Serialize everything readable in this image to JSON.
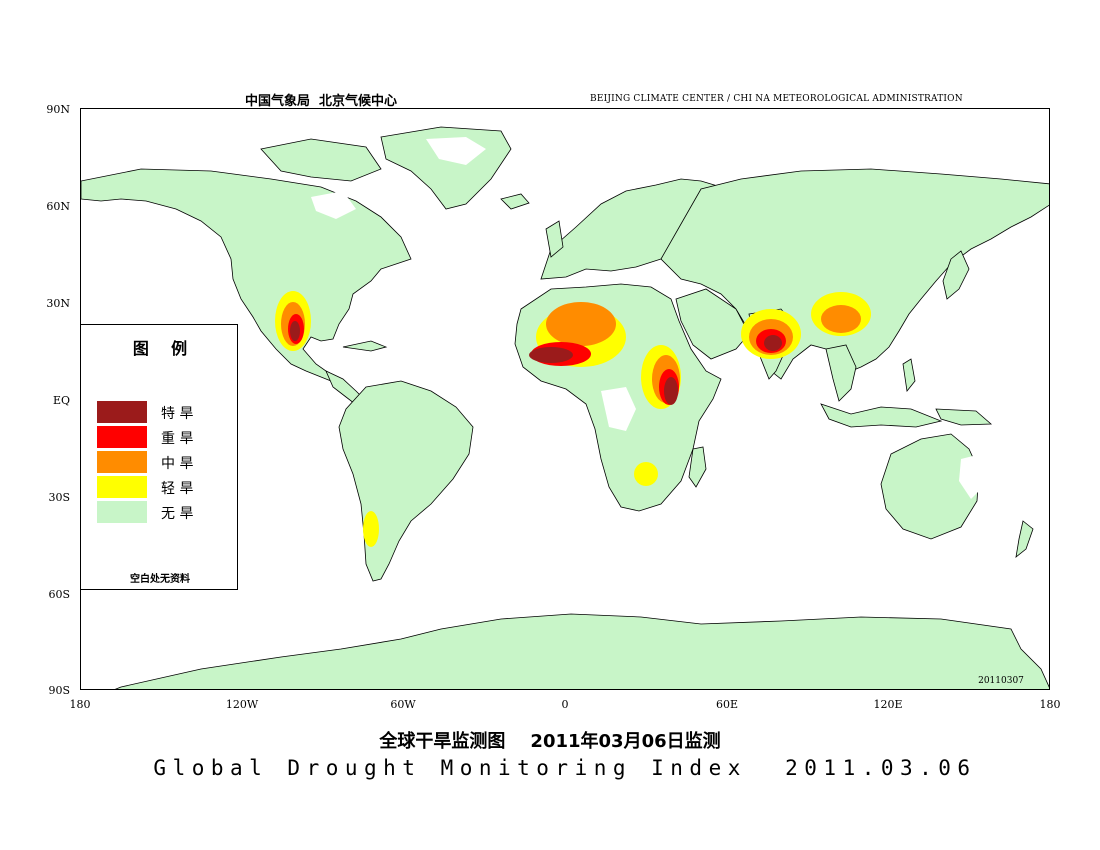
{
  "header": {
    "left": "中国气象局  北京气候中心",
    "right": "BEIJING CLIMATE CENTER / CHI NA METEOROLOGICAL ADMINISTRATION"
  },
  "axes": {
    "lat_ticks": [
      "90N",
      "60N",
      "30N",
      "EQ",
      "30S",
      "60S",
      "90S"
    ],
    "lon_ticks": [
      "180",
      "120W",
      "60W",
      "0",
      "60E",
      "120E",
      "180"
    ]
  },
  "legend": {
    "title": "图    例",
    "items": [
      {
        "label": "特 旱",
        "color": "#9B1B1B"
      },
      {
        "label": "重 旱",
        "color": "#FF0000"
      },
      {
        "label": "中 旱",
        "color": "#FF8C00"
      },
      {
        "label": "轻 旱",
        "color": "#FFFF00"
      },
      {
        "label": "无 旱",
        "color": "#C8F5C8"
      }
    ],
    "note": "空白处无资料"
  },
  "date_code": "20110307",
  "title_cn": "全球干旱监测图    2011年03月06日监测",
  "title_en": "Global Drought Monitoring Index  2011.03.06",
  "colors": {
    "land": "#C8F5C8",
    "ocean": "#FFFFFF",
    "coast": "#000000"
  }
}
